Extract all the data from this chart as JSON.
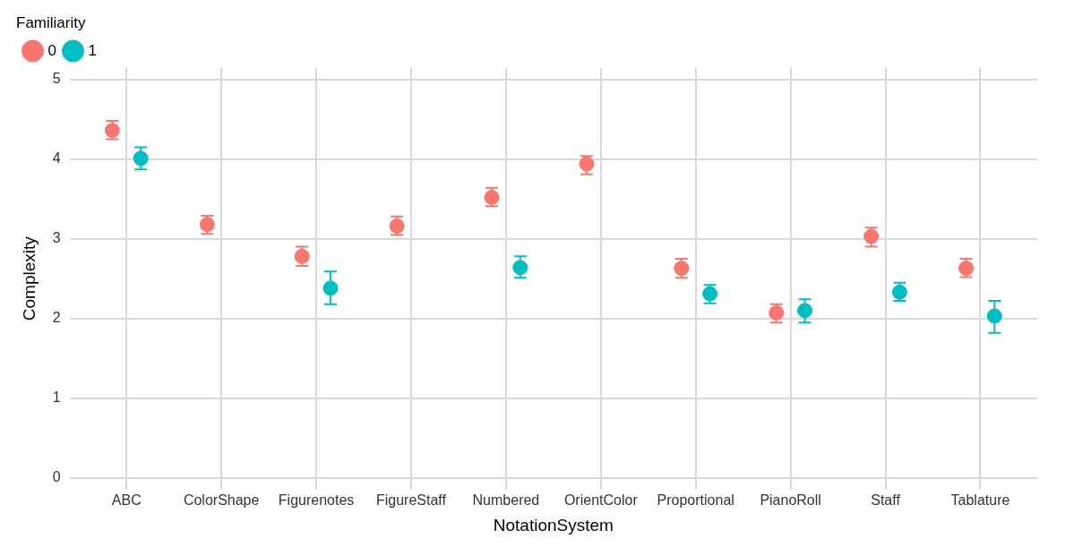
{
  "chart_data": {
    "type": "scatter",
    "xlabel": "NotationSystem",
    "ylabel": "Complexity",
    "legend_title": "Familiarity",
    "categories": [
      "ABC",
      "ColorShape",
      "Figurenotes",
      "FigureStaff",
      "Numbered",
      "OrientColor",
      "Proportional",
      "PianoRoll",
      "Staff",
      "Tablature"
    ],
    "series": [
      {
        "name": "0",
        "color": "#f8766d",
        "values": [
          4.36,
          3.18,
          2.78,
          3.16,
          3.52,
          3.94,
          2.63,
          2.07,
          3.03,
          2.63
        ],
        "errors": [
          [
            4.25,
            4.48
          ],
          [
            3.06,
            3.29
          ],
          [
            2.66,
            2.9
          ],
          [
            3.05,
            3.28
          ],
          [
            3.41,
            3.64
          ],
          [
            3.81,
            4.04
          ],
          [
            2.51,
            2.75
          ],
          [
            1.95,
            2.18
          ],
          [
            2.9,
            3.14
          ],
          [
            2.52,
            2.75
          ]
        ]
      },
      {
        "name": "1",
        "color": "#00bfc4",
        "values": [
          4.01,
          null,
          2.38,
          null,
          2.64,
          null,
          2.31,
          2.1,
          2.33,
          2.03
        ],
        "errors": [
          [
            3.87,
            4.15
          ],
          null,
          [
            2.18,
            2.59
          ],
          null,
          [
            2.51,
            2.78
          ],
          null,
          [
            2.19,
            2.42
          ],
          [
            1.95,
            2.24
          ],
          [
            2.22,
            2.45
          ],
          [
            1.82,
            2.22
          ]
        ]
      }
    ],
    "ylim": [
      -0.15,
      5.15
    ],
    "yticks": [
      0,
      1,
      2,
      3,
      4,
      5
    ],
    "grid": true,
    "legend": "top left",
    "marker": "circle"
  }
}
